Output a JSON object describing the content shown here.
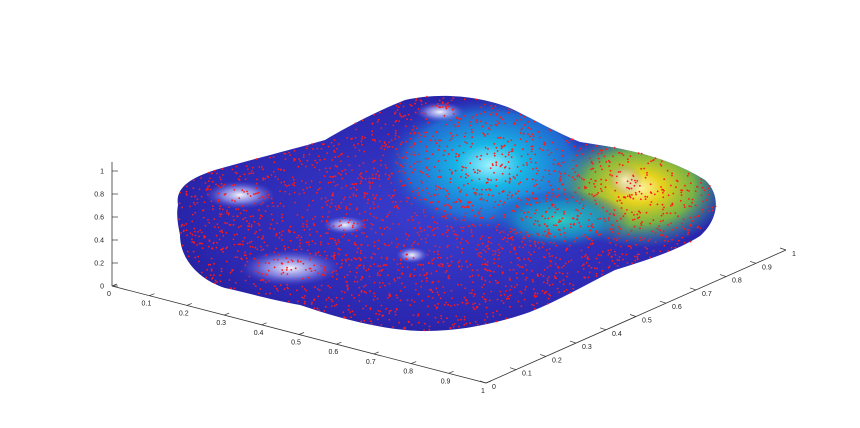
{
  "chart_data": {
    "type": "surface",
    "title": "",
    "xlabel": "",
    "ylabel": "",
    "zlabel": "",
    "xlim": [
      0,
      1
    ],
    "ylim": [
      0,
      1
    ],
    "zlim": [
      0,
      1
    ],
    "grid": false,
    "x_ticks": [
      "0",
      "0.1",
      "0.2",
      "0.3",
      "0.4",
      "0.5",
      "0.6",
      "0.7",
      "0.8",
      "0.9",
      "1"
    ],
    "y_ticks": [
      "0",
      "0.1",
      "0.2",
      "0.3",
      "0.4",
      "0.5",
      "0.6",
      "0.7",
      "0.8",
      "0.9",
      "1"
    ],
    "z_ticks": [
      "0",
      "0.2",
      "0.4",
      "0.6",
      "0.8",
      "1"
    ],
    "colormap": [
      "#2a1fa8",
      "#1e6fd6",
      "#12b3d8",
      "#2fc79b",
      "#c6c71e",
      "#f2e21a"
    ],
    "marker_color": "#ff1a1a",
    "surface_description_colors": {
      "low": "#2d2ab5",
      "mid": "#14a7d6",
      "high": "#d8c21c"
    }
  }
}
